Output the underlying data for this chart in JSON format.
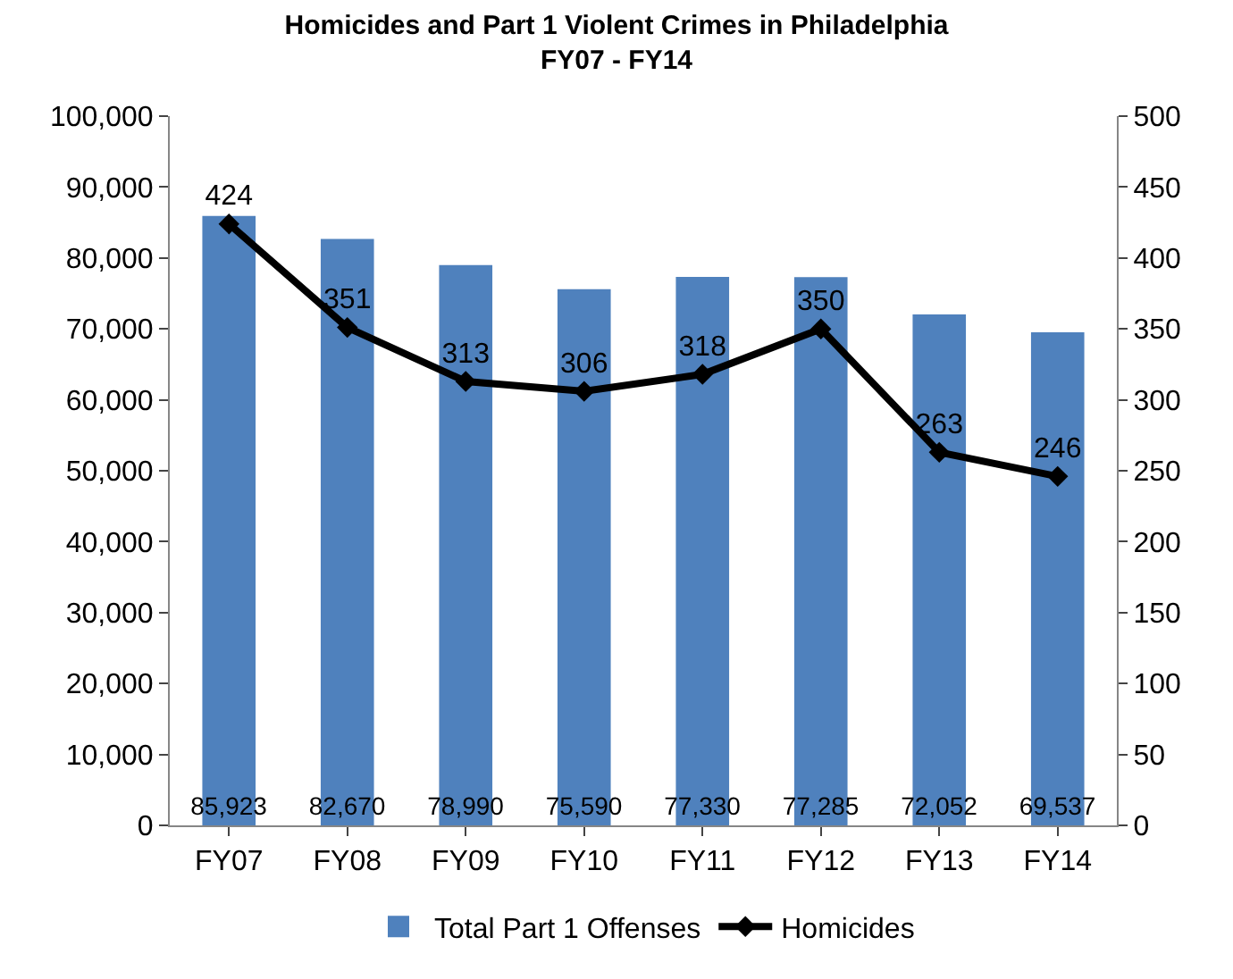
{
  "chart_data": {
    "type": "bar",
    "title": "Homicides and Part 1 Violent Crimes in Philadelphia\nFY07 - FY14",
    "categories": [
      "FY07",
      "FY08",
      "FY09",
      "FY10",
      "FY11",
      "FY12",
      "FY13",
      "FY14"
    ],
    "series": [
      {
        "name": "Total Part 1 Offenses",
        "color": "#4f81bd",
        "values": [
          85923,
          82670,
          78990,
          75590,
          77330,
          77285,
          72052,
          69537
        ],
        "value_labels": [
          "85,923",
          "82,670",
          "78,990",
          "75,590",
          "77,330",
          "77,285",
          "72,052",
          "69,537"
        ]
      },
      {
        "name": "Homicides",
        "type": "line",
        "axis": "y2",
        "color": "#000000",
        "marker": "diamond",
        "values": [
          424,
          351,
          313,
          306,
          318,
          350,
          263,
          246
        ],
        "value_labels": [
          "424",
          "351",
          "313",
          "306",
          "318",
          "350",
          "263",
          "246"
        ]
      }
    ],
    "ylim": [
      0,
      100000
    ],
    "yticks": [
      0,
      {
        "value": 10000,
        "label": "10,000"
      },
      {
        "value": 20000,
        "label": "20,000"
      },
      {
        "value": 30000,
        "label": "30,000"
      },
      {
        "value": 40000,
        "label": "40,000"
      },
      {
        "value": 50000,
        "label": "50,000"
      },
      {
        "value": 60000,
        "label": "60,000"
      },
      {
        "value": 70000,
        "label": "70,000"
      },
      {
        "value": 80000,
        "label": "80,000"
      },
      {
        "value": 90000,
        "label": "90,000"
      },
      {
        "value": 100000,
        "label": "100,000"
      }
    ],
    "y2lim": [
      0,
      500
    ],
    "y2ticks": [
      0,
      50,
      100,
      150,
      200,
      250,
      300,
      350,
      400,
      450,
      500
    ],
    "legend": "bottom"
  }
}
